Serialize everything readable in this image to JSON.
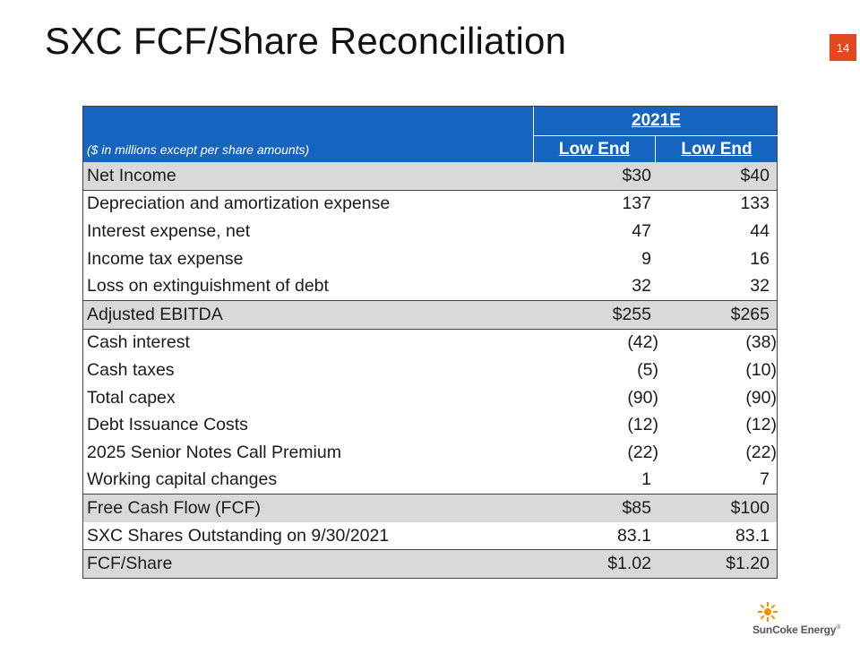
{
  "slide": {
    "title": "SXC FCF/Share Reconciliation",
    "page_number": "14"
  },
  "table": {
    "year_header": "2021E",
    "subnote": "($ in millions except per share amounts)",
    "col1_header": "Low End",
    "col2_header": "Low End",
    "rows": [
      {
        "label": "Net Income",
        "v1": "$30",
        "v2": "$40"
      },
      {
        "label": "Depreciation and amortization expense",
        "v1": "137",
        "v2": "133"
      },
      {
        "label": "Interest expense, net",
        "v1": "47",
        "v2": "44"
      },
      {
        "label": "Income tax expense",
        "v1": "9",
        "v2": "16"
      },
      {
        "label": "Loss on extinguishment of debt",
        "v1": "32",
        "v2": "32"
      },
      {
        "label": "Adjusted EBITDA",
        "v1": "$255",
        "v2": "$265"
      },
      {
        "label": "Cash interest",
        "v1": "(42)",
        "v2": "(38)"
      },
      {
        "label": "Cash taxes",
        "v1": "(5)",
        "v2": "(10)"
      },
      {
        "label": "Total capex",
        "v1": "(90)",
        "v2": "(90)"
      },
      {
        "label": "Debt Issuance Costs",
        "v1": "(12)",
        "v2": "(12)"
      },
      {
        "label": "2025 Senior Notes Call Premium",
        "v1": "(22)",
        "v2": "(22)"
      },
      {
        "label": "Working capital changes",
        "v1": "1",
        "v2": "7"
      },
      {
        "label": "Free Cash Flow (FCF)",
        "v1": "$85",
        "v2": "$100"
      },
      {
        "label": "SXC Shares Outstanding on 9/30/2021",
        "v1": "83.1",
        "v2": "83.1"
      },
      {
        "label": "FCF/Share",
        "v1": "$1.02",
        "v2": "$1.20"
      }
    ]
  },
  "logo": {
    "text": "SunCoke Energy",
    "mark": "®",
    "icon": "sun-icon",
    "color": "#f39200"
  }
}
